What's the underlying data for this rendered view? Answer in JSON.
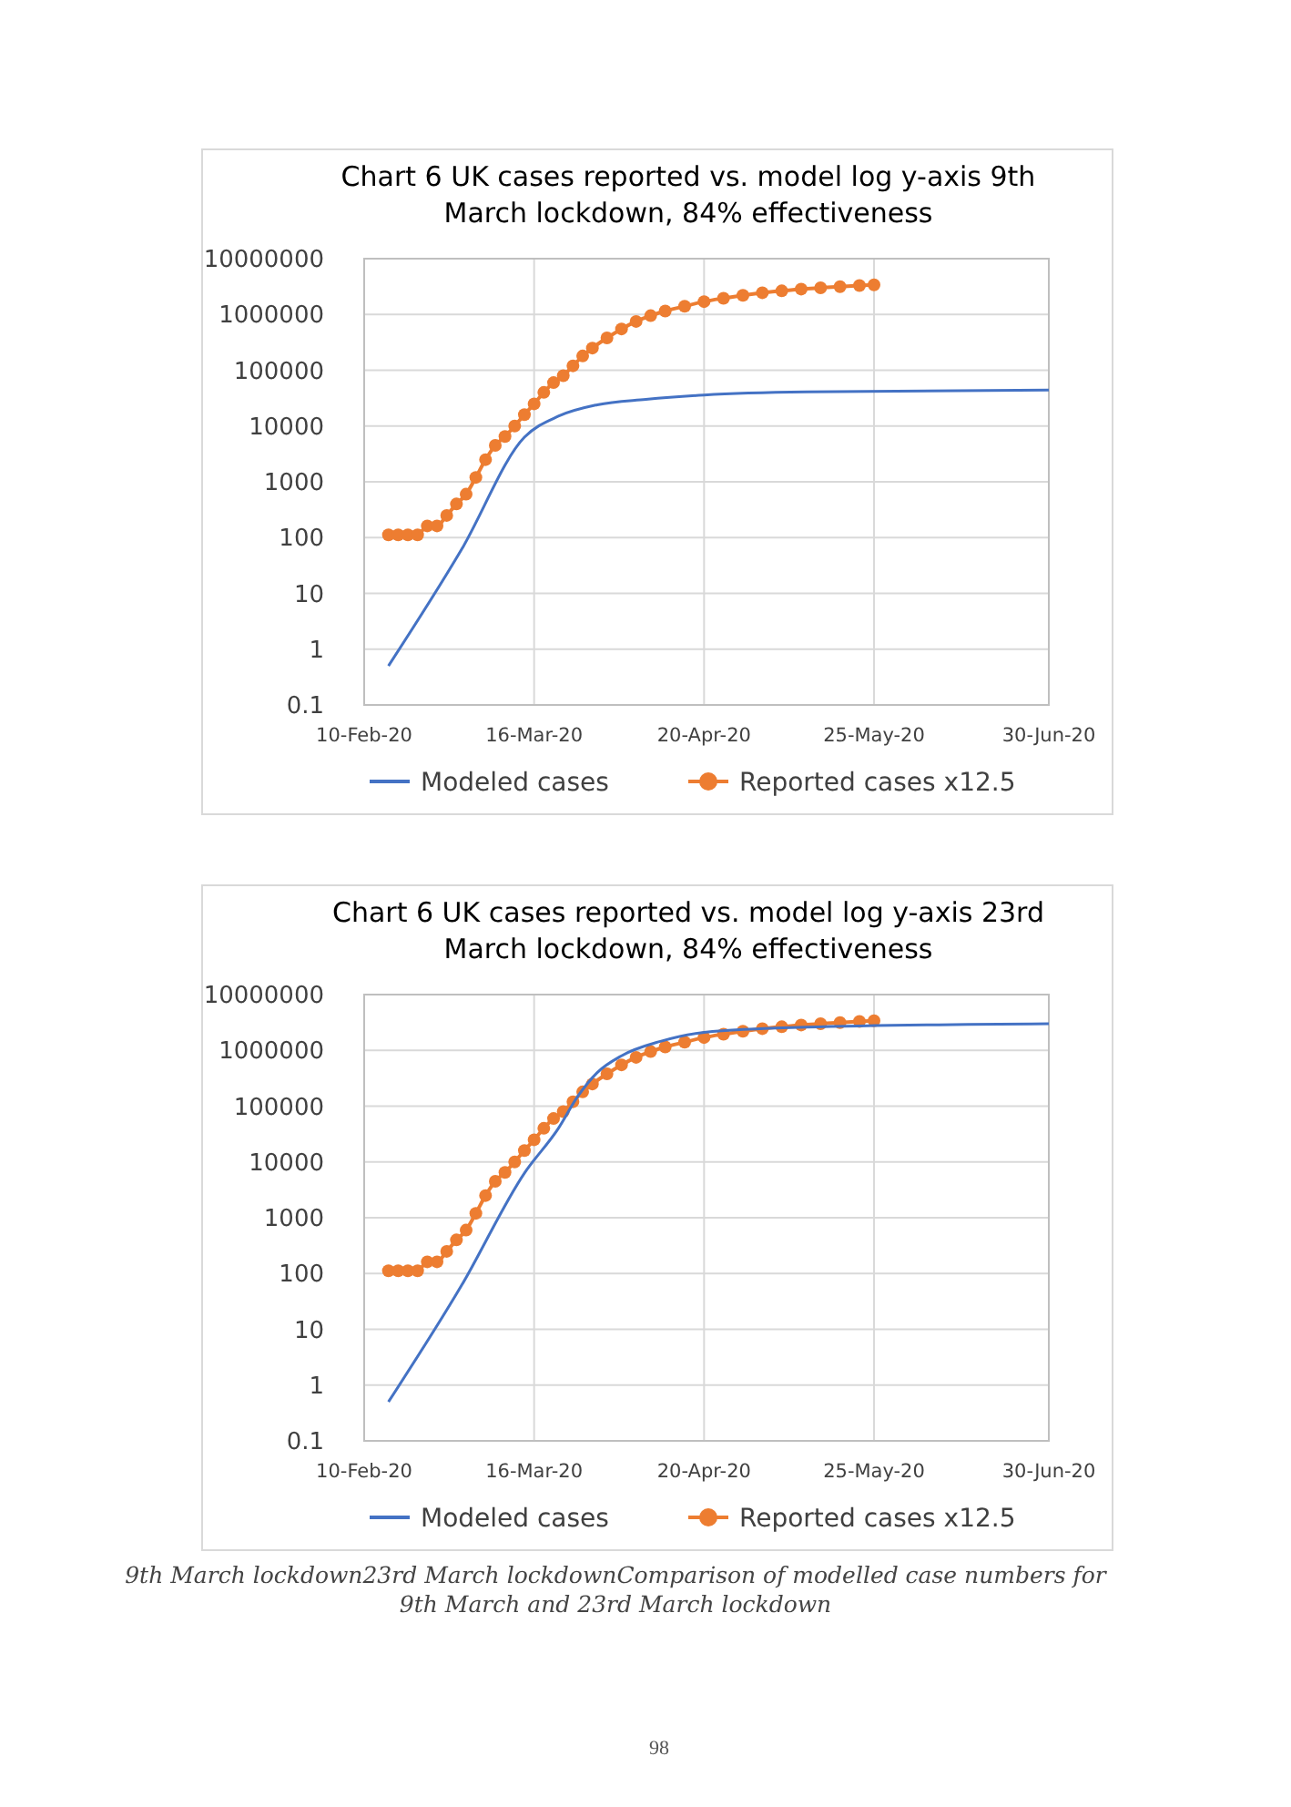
{
  "chart_data": [
    {
      "type": "line",
      "title": "Chart 6 UK cases reported vs. model log y-axis 9th March lockdown, 84% effectiveness",
      "log": "y",
      "grid": true,
      "legend": "bottom",
      "xlim": [
        "2020-02-10",
        "2020-06-30"
      ],
      "xticks": [
        {
          "value": "2020-02-10",
          "label": "10-Feb-20"
        },
        {
          "value": "2020-03-16",
          "label": "16-Mar-20"
        },
        {
          "value": "2020-04-20",
          "label": "20-Apr-20"
        },
        {
          "value": "2020-05-25",
          "label": "25-May-20"
        },
        {
          "value": "2020-06-30",
          "label": "30-Jun-20"
        }
      ],
      "ylim": [
        0.1,
        10000000
      ],
      "yticks": [
        0.1,
        1,
        10,
        100,
        1000,
        10000,
        100000,
        1000000,
        10000000
      ],
      "series": [
        {
          "name": "Modeled cases",
          "color": "#4472c4",
          "marker": "none",
          "x": [
            "2020-02-15",
            "2020-03-01",
            "2020-03-14",
            "2020-03-21",
            "2020-03-29",
            "2020-04-08",
            "2020-04-20",
            "2020-05-11",
            "2020-06-30"
          ],
          "values": [
            0.5,
            60,
            6300,
            15000,
            24000,
            30000,
            36000,
            41000,
            44000
          ]
        },
        {
          "name": "Reported cases x12.5",
          "color": "#ed7d31",
          "marker": "circle",
          "x": [
            "2020-02-15",
            "2020-02-17",
            "2020-02-19",
            "2020-02-21",
            "2020-02-23",
            "2020-02-25",
            "2020-02-27",
            "2020-02-29",
            "2020-03-02",
            "2020-03-04",
            "2020-03-06",
            "2020-03-08",
            "2020-03-10",
            "2020-03-12",
            "2020-03-14",
            "2020-03-16",
            "2020-03-18",
            "2020-03-20",
            "2020-03-22",
            "2020-03-24",
            "2020-03-26",
            "2020-03-28",
            "2020-03-31",
            "2020-04-03",
            "2020-04-06",
            "2020-04-09",
            "2020-04-12",
            "2020-04-16",
            "2020-04-20",
            "2020-04-24",
            "2020-04-28",
            "2020-05-02",
            "2020-05-06",
            "2020-05-10",
            "2020-05-14",
            "2020-05-18",
            "2020-05-22",
            "2020-05-25"
          ],
          "values": [
            112,
            112,
            112,
            112,
            162,
            162,
            250,
            400,
            600,
            1200,
            2500,
            4500,
            6500,
            10000,
            16000,
            25000,
            40000,
            60000,
            80000,
            120000,
            180000,
            250000,
            380000,
            550000,
            750000,
            950000,
            1150000,
            1400000,
            1700000,
            1950000,
            2200000,
            2450000,
            2650000,
            2850000,
            3000000,
            3150000,
            3300000,
            3400000
          ]
        }
      ]
    },
    {
      "type": "line",
      "title": "Chart 6 UK cases reported vs. model log y-axis 23rd March lockdown, 84% effectiveness",
      "log": "y",
      "grid": true,
      "legend": "bottom",
      "xlim": [
        "2020-02-10",
        "2020-06-30"
      ],
      "xticks": [
        {
          "value": "2020-02-10",
          "label": "10-Feb-20"
        },
        {
          "value": "2020-03-16",
          "label": "16-Mar-20"
        },
        {
          "value": "2020-04-20",
          "label": "20-Apr-20"
        },
        {
          "value": "2020-05-25",
          "label": "25-May-20"
        },
        {
          "value": "2020-06-30",
          "label": "30-Jun-20"
        }
      ],
      "ylim": [
        0.1,
        10000000
      ],
      "yticks": [
        0.1,
        1,
        10,
        100,
        1000,
        10000,
        100000,
        1000000,
        10000000
      ],
      "annotations": [
        "9th March lockdown23rd March lockdownComparison of modelled case numbers for 9th March and 23rd March lockdown",
        "98"
      ],
      "series": [
        {
          "name": "Modeled cases",
          "color": "#4472c4",
          "marker": "none",
          "x": [
            "2020-02-15",
            "2020-03-01",
            "2020-03-14",
            "2020-03-21",
            "2020-03-25",
            "2020-03-29",
            "2020-04-03",
            "2020-04-11",
            "2020-04-20",
            "2020-05-11",
            "2020-06-30"
          ],
          "values": [
            0.5,
            60,
            6300,
            40000,
            150000,
            400000,
            800000,
            1450000,
            2100000,
            2600000,
            3000000
          ]
        },
        {
          "name": "Reported cases x12.5",
          "color": "#ed7d31",
          "marker": "circle",
          "x": [
            "2020-02-15",
            "2020-02-17",
            "2020-02-19",
            "2020-02-21",
            "2020-02-23",
            "2020-02-25",
            "2020-02-27",
            "2020-02-29",
            "2020-03-02",
            "2020-03-04",
            "2020-03-06",
            "2020-03-08",
            "2020-03-10",
            "2020-03-12",
            "2020-03-14",
            "2020-03-16",
            "2020-03-18",
            "2020-03-20",
            "2020-03-22",
            "2020-03-24",
            "2020-03-26",
            "2020-03-28",
            "2020-03-31",
            "2020-04-03",
            "2020-04-06",
            "2020-04-09",
            "2020-04-12",
            "2020-04-16",
            "2020-04-20",
            "2020-04-24",
            "2020-04-28",
            "2020-05-02",
            "2020-05-06",
            "2020-05-10",
            "2020-05-14",
            "2020-05-18",
            "2020-05-22",
            "2020-05-25"
          ],
          "values": [
            112,
            112,
            112,
            112,
            162,
            162,
            250,
            400,
            600,
            1200,
            2500,
            4500,
            6500,
            10000,
            16000,
            25000,
            40000,
            60000,
            80000,
            120000,
            180000,
            250000,
            380000,
            550000,
            750000,
            950000,
            1150000,
            1400000,
            1700000,
            1950000,
            2200000,
            2450000,
            2650000,
            2850000,
            3000000,
            3150000,
            3300000,
            3400000
          ]
        }
      ]
    }
  ]
}
